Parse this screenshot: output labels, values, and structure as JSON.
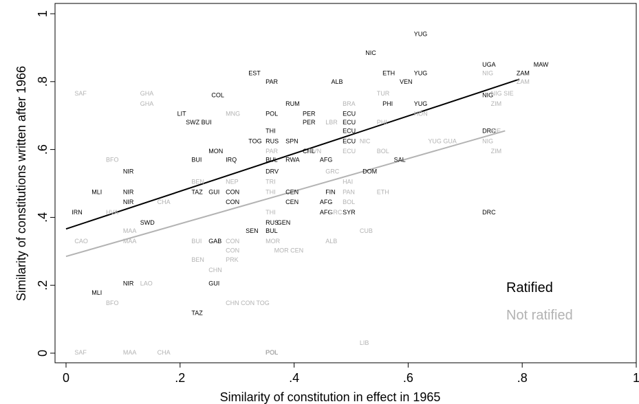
{
  "chart_data": {
    "type": "scatter",
    "xlabel": "Similarity of constitution in effect in 1965",
    "ylabel": "Similarity of constitutions written after 1966",
    "xlim": [
      0,
      1
    ],
    "ylim": [
      0,
      1
    ],
    "x_ticks": [
      {
        "value": 0,
        "label": "0"
      },
      {
        "value": 0.2,
        "label": ".2"
      },
      {
        "value": 0.4,
        "label": ".4"
      },
      {
        "value": 0.6,
        "label": ".6"
      },
      {
        "value": 0.8,
        "label": ".8"
      },
      {
        "value": 1,
        "label": "1"
      }
    ],
    "y_ticks": [
      {
        "value": 0,
        "label": "0"
      },
      {
        "value": 0.2,
        "label": ".2"
      },
      {
        "value": 0.4,
        "label": ".4"
      },
      {
        "value": 0.6,
        "label": ".6"
      },
      {
        "value": 0.8,
        "label": ".8"
      },
      {
        "value": 1,
        "label": "1"
      }
    ],
    "grid": false,
    "legend_position": "bottom-right",
    "series": [
      {
        "name": "Ratified",
        "color": "#000000",
        "fit": {
          "x": [
            0,
            0.795
          ],
          "y": [
            0.366,
            0.807
          ]
        },
        "points": [
          {
            "label": "YUG",
            "x": 0.61,
            "y": 0.94
          },
          {
            "label": "NIC",
            "x": 0.525,
            "y": 0.885
          },
          {
            "label": "UGA",
            "x": 0.73,
            "y": 0.85
          },
          {
            "label": "MAW",
            "x": 0.82,
            "y": 0.85
          },
          {
            "label": "EST",
            "x": 0.32,
            "y": 0.825
          },
          {
            "label": "ETH",
            "x": 0.555,
            "y": 0.825
          },
          {
            "label": "YUG",
            "x": 0.61,
            "y": 0.825
          },
          {
            "label": "ZAM",
            "x": 0.79,
            "y": 0.825
          },
          {
            "label": "PAR",
            "x": 0.35,
            "y": 0.8
          },
          {
            "label": "ALB",
            "x": 0.465,
            "y": 0.8
          },
          {
            "label": "VEN",
            "x": 0.585,
            "y": 0.8
          },
          {
            "label": "COL",
            "x": 0.255,
            "y": 0.76
          },
          {
            "label": "NIG",
            "x": 0.73,
            "y": 0.76
          },
          {
            "label": "RUM",
            "x": 0.385,
            "y": 0.735
          },
          {
            "label": "PHI",
            "x": 0.555,
            "y": 0.735
          },
          {
            "label": "YUG",
            "x": 0.61,
            "y": 0.735
          },
          {
            "label": "LIT",
            "x": 0.195,
            "y": 0.705
          },
          {
            "label": "POL",
            "x": 0.35,
            "y": 0.705
          },
          {
            "label": "PER",
            "x": 0.415,
            "y": 0.705
          },
          {
            "label": "ECU",
            "x": 0.485,
            "y": 0.705
          },
          {
            "label": "SWZ BUI",
            "x": 0.21,
            "y": 0.68
          },
          {
            "label": "PER",
            "x": 0.415,
            "y": 0.68
          },
          {
            "label": "ECU",
            "x": 0.485,
            "y": 0.68
          },
          {
            "label": "THI",
            "x": 0.35,
            "y": 0.655
          },
          {
            "label": "ECU",
            "x": 0.485,
            "y": 0.655
          },
          {
            "label": "DRC",
            "x": 0.73,
            "y": 0.655
          },
          {
            "label": "TOG",
            "x": 0.32,
            "y": 0.625
          },
          {
            "label": "RUS",
            "x": 0.35,
            "y": 0.625
          },
          {
            "label": "SPN",
            "x": 0.385,
            "y": 0.625
          },
          {
            "label": "ECU",
            "x": 0.485,
            "y": 0.625
          },
          {
            "label": "MON",
            "x": 0.25,
            "y": 0.595
          },
          {
            "label": "CHL",
            "x": 0.415,
            "y": 0.595
          },
          {
            "label": "BUI",
            "x": 0.22,
            "y": 0.57
          },
          {
            "label": "IRQ",
            "x": 0.28,
            "y": 0.57
          },
          {
            "label": "BUL",
            "x": 0.35,
            "y": 0.57
          },
          {
            "label": "RWA",
            "x": 0.385,
            "y": 0.57
          },
          {
            "label": "AFG",
            "x": 0.445,
            "y": 0.57
          },
          {
            "label": "SAL",
            "x": 0.575,
            "y": 0.57
          },
          {
            "label": "NIR",
            "x": 0.1,
            "y": 0.535
          },
          {
            "label": "DRV",
            "x": 0.35,
            "y": 0.535
          },
          {
            "label": "DOM",
            "x": 0.52,
            "y": 0.535
          },
          {
            "label": "MLI",
            "x": 0.045,
            "y": 0.475
          },
          {
            "label": "NIR",
            "x": 0.1,
            "y": 0.475
          },
          {
            "label": "TAZ",
            "x": 0.22,
            "y": 0.475
          },
          {
            "label": "GUI",
            "x": 0.25,
            "y": 0.475
          },
          {
            "label": "CON",
            "x": 0.28,
            "y": 0.475
          },
          {
            "label": "CEN",
            "x": 0.385,
            "y": 0.475
          },
          {
            "label": "FIN",
            "x": 0.455,
            "y": 0.475
          },
          {
            "label": "NIR",
            "x": 0.1,
            "y": 0.445
          },
          {
            "label": "CON",
            "x": 0.28,
            "y": 0.445
          },
          {
            "label": "CEN",
            "x": 0.385,
            "y": 0.445
          },
          {
            "label": "AFG",
            "x": 0.445,
            "y": 0.445
          },
          {
            "label": "IRN",
            "x": 0.01,
            "y": 0.415
          },
          {
            "label": "AFG",
            "x": 0.445,
            "y": 0.415
          },
          {
            "label": "SYR",
            "x": 0.485,
            "y": 0.415
          },
          {
            "label": "DRC",
            "x": 0.73,
            "y": 0.415
          },
          {
            "label": "SWD",
            "x": 0.13,
            "y": 0.385
          },
          {
            "label": "RUS",
            "x": 0.35,
            "y": 0.385
          },
          {
            "label": "GEN",
            "x": 0.37,
            "y": 0.385
          },
          {
            "label": "SEN",
            "x": 0.315,
            "y": 0.36
          },
          {
            "label": "BUL",
            "x": 0.35,
            "y": 0.36
          },
          {
            "label": "GAB",
            "x": 0.25,
            "y": 0.33
          },
          {
            "label": "NIR",
            "x": 0.1,
            "y": 0.205
          },
          {
            "label": "GUI",
            "x": 0.25,
            "y": 0.205
          },
          {
            "label": "MLI",
            "x": 0.045,
            "y": 0.178
          },
          {
            "label": "TAZ",
            "x": 0.22,
            "y": 0.118
          },
          {
            "label": "POL",
            "x": 0.35,
            "y": 0.002
          }
        ]
      },
      {
        "name": "Not ratified",
        "color": "#b3b3b3",
        "fit": {
          "x": [
            0,
            0.77
          ],
          "y": [
            0.285,
            0.655
          ]
        },
        "points": [
          {
            "label": "NIG",
            "x": 0.73,
            "y": 0.825
          },
          {
            "label": "ZAM",
            "x": 0.79,
            "y": 0.8
          },
          {
            "label": "SAF",
            "x": 0.015,
            "y": 0.765
          },
          {
            "label": "GHA",
            "x": 0.13,
            "y": 0.765
          },
          {
            "label": "TUR",
            "x": 0.545,
            "y": 0.765
          },
          {
            "label": "NIG SIE",
            "x": 0.745,
            "y": 0.765
          },
          {
            "label": "GHA",
            "x": 0.13,
            "y": 0.735
          },
          {
            "label": "BRA",
            "x": 0.485,
            "y": 0.735
          },
          {
            "label": "ZIM",
            "x": 0.745,
            "y": 0.735
          },
          {
            "label": "MNG",
            "x": 0.28,
            "y": 0.705
          },
          {
            "label": "HON",
            "x": 0.61,
            "y": 0.705
          },
          {
            "label": "LBR",
            "x": 0.455,
            "y": 0.68
          },
          {
            "label": "PHI",
            "x": 0.545,
            "y": 0.68
          },
          {
            "label": "SIE",
            "x": 0.745,
            "y": 0.655
          },
          {
            "label": "NIC",
            "x": 0.515,
            "y": 0.625
          },
          {
            "label": "YUG GUA",
            "x": 0.635,
            "y": 0.625
          },
          {
            "label": "NIG",
            "x": 0.73,
            "y": 0.625
          },
          {
            "label": "PAR",
            "x": 0.35,
            "y": 0.595
          },
          {
            "label": "RVN",
            "x": 0.425,
            "y": 0.595
          },
          {
            "label": "ECU",
            "x": 0.485,
            "y": 0.595
          },
          {
            "label": "BOL",
            "x": 0.545,
            "y": 0.595
          },
          {
            "label": "ZIM",
            "x": 0.745,
            "y": 0.595
          },
          {
            "label": "BFO",
            "x": 0.07,
            "y": 0.57
          },
          {
            "label": "GRC",
            "x": 0.455,
            "y": 0.535
          },
          {
            "label": "BEN",
            "x": 0.22,
            "y": 0.505
          },
          {
            "label": "NEP",
            "x": 0.28,
            "y": 0.505
          },
          {
            "label": "TRI",
            "x": 0.35,
            "y": 0.505
          },
          {
            "label": "HAI",
            "x": 0.485,
            "y": 0.505
          },
          {
            "label": "THI",
            "x": 0.35,
            "y": 0.475
          },
          {
            "label": "PAN",
            "x": 0.485,
            "y": 0.475
          },
          {
            "label": "ETH",
            "x": 0.545,
            "y": 0.475
          },
          {
            "label": "CHA",
            "x": 0.16,
            "y": 0.445
          },
          {
            "label": "BOL",
            "x": 0.485,
            "y": 0.445
          },
          {
            "label": "HVA",
            "x": 0.07,
            "y": 0.415
          },
          {
            "label": "THI",
            "x": 0.35,
            "y": 0.415
          },
          {
            "label": "GRC",
            "x": 0.46,
            "y": 0.415
          },
          {
            "label": "MAA",
            "x": 0.1,
            "y": 0.36
          },
          {
            "label": "CUB",
            "x": 0.515,
            "y": 0.36
          },
          {
            "label": "CAO",
            "x": 0.015,
            "y": 0.33
          },
          {
            "label": "MAA",
            "x": 0.1,
            "y": 0.33
          },
          {
            "label": "BUI",
            "x": 0.22,
            "y": 0.33
          },
          {
            "label": "CON",
            "x": 0.28,
            "y": 0.33
          },
          {
            "label": "MOR",
            "x": 0.35,
            "y": 0.33
          },
          {
            "label": "ALB",
            "x": 0.455,
            "y": 0.33
          },
          {
            "label": "CON",
            "x": 0.28,
            "y": 0.303
          },
          {
            "label": "MOR CEN",
            "x": 0.365,
            "y": 0.303
          },
          {
            "label": "BEN",
            "x": 0.22,
            "y": 0.275
          },
          {
            "label": "PRK",
            "x": 0.28,
            "y": 0.275
          },
          {
            "label": "CHN",
            "x": 0.25,
            "y": 0.245
          },
          {
            "label": "LAO",
            "x": 0.13,
            "y": 0.205
          },
          {
            "label": "BFO",
            "x": 0.07,
            "y": 0.148
          },
          {
            "label": "CHN CON TOG",
            "x": 0.28,
            "y": 0.148
          },
          {
            "label": "LIB",
            "x": 0.515,
            "y": 0.03
          },
          {
            "label": "SAF",
            "x": 0.015,
            "y": 0.002
          },
          {
            "label": "MAA",
            "x": 0.1,
            "y": 0.002
          },
          {
            "label": "CHA",
            "x": 0.16,
            "y": 0.002
          },
          {
            "label": "POL",
            "x": 0.35,
            "y": 0.002
          }
        ]
      }
    ]
  }
}
